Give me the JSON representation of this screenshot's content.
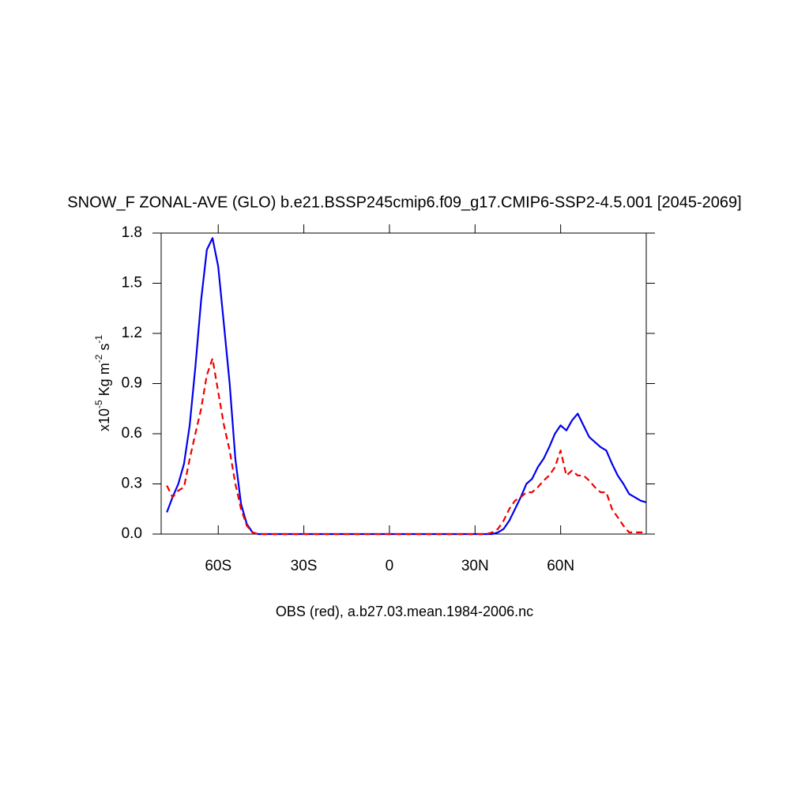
{
  "chart_data": {
    "type": "line",
    "title": "SNOW_F ZONAL-AVE (GLO) b.e21.BSSP245cmip6.f09_g17.CMIP6-SSP2-4.5.001 [2045-2069]",
    "subtitle": "OBS (red), a.b27.03.mean.1984-2006.nc",
    "ylabel_parts": [
      "x10",
      "-5",
      " Kg m",
      "-2",
      " s",
      "-1"
    ],
    "xlim": [
      -80,
      90
    ],
    "ylim": [
      0,
      1.8
    ],
    "xticks": [
      {
        "value": -60,
        "label": "60S"
      },
      {
        "value": -30,
        "label": "30S"
      },
      0,
      {
        "value": 30,
        "label": "30N"
      },
      {
        "value": 60,
        "label": "60N"
      }
    ],
    "yticks": [
      {
        "value": 0,
        "label": "0.0"
      },
      0.3,
      0.6,
      0.9,
      1.2,
      1.5,
      1.8
    ],
    "x": [
      -78,
      -76,
      -74,
      -72,
      -70,
      -68,
      -66,
      -64,
      -62,
      -60,
      -58,
      -56,
      -54,
      -52,
      -50,
      -48,
      -46,
      -44,
      -42,
      -40,
      -38,
      -36,
      -34,
      -32,
      -30,
      -28,
      -26,
      -24,
      -22,
      -20,
      -18,
      -16,
      -14,
      -12,
      -10,
      -8,
      -6,
      -4,
      -2,
      0,
      2,
      4,
      6,
      8,
      10,
      12,
      14,
      16,
      18,
      20,
      22,
      24,
      26,
      28,
      30,
      32,
      34,
      36,
      38,
      40,
      42,
      44,
      46,
      48,
      50,
      52,
      54,
      56,
      58,
      60,
      62,
      64,
      66,
      68,
      70,
      72,
      74,
      76,
      78,
      80,
      82,
      84,
      86,
      88,
      90
    ],
    "series": [
      {
        "color": "#0000ee",
        "dash": false,
        "values": [
          0.13,
          0.22,
          0.3,
          0.42,
          0.65,
          1.0,
          1.4,
          1.7,
          1.77,
          1.6,
          1.25,
          0.9,
          0.45,
          0.18,
          0.06,
          0.01,
          0,
          0,
          0,
          0,
          0,
          0,
          0,
          0,
          0,
          0,
          0,
          0,
          0,
          0,
          0,
          0,
          0,
          0,
          0,
          0,
          0,
          0,
          0,
          0,
          0,
          0,
          0,
          0,
          0,
          0,
          0,
          0,
          0,
          0,
          0,
          0,
          0,
          0,
          0,
          0,
          0,
          0,
          0.01,
          0.03,
          0.08,
          0.15,
          0.22,
          0.3,
          0.33,
          0.4,
          0.45,
          0.52,
          0.6,
          0.65,
          0.62,
          0.68,
          0.72,
          0.65,
          0.58,
          0.55,
          0.52,
          0.5,
          0.42,
          0.35,
          0.3,
          0.24,
          0.22,
          0.2,
          0.19
        ]
      },
      {
        "color": "#ee0000",
        "dash": true,
        "values": [
          0.29,
          0.22,
          0.26,
          0.28,
          0.45,
          0.6,
          0.75,
          0.95,
          1.05,
          0.85,
          0.65,
          0.5,
          0.3,
          0.15,
          0.05,
          0.01,
          0,
          0,
          0,
          0,
          0,
          0,
          0,
          0,
          0,
          0,
          0,
          0,
          0,
          0,
          0,
          0,
          0,
          0,
          0,
          0,
          0,
          0,
          0,
          0,
          0,
          0,
          0,
          0,
          0,
          0,
          0,
          0,
          0,
          0,
          0,
          0,
          0,
          0,
          0,
          0,
          0,
          0.01,
          0.03,
          0.08,
          0.15,
          0.2,
          0.22,
          0.25,
          0.25,
          0.28,
          0.32,
          0.35,
          0.4,
          0.5,
          0.35,
          0.38,
          0.35,
          0.35,
          0.32,
          0.28,
          0.25,
          0.25,
          0.15,
          0.1,
          0.05,
          0.01,
          0.01,
          0.01,
          0.01
        ]
      }
    ]
  }
}
